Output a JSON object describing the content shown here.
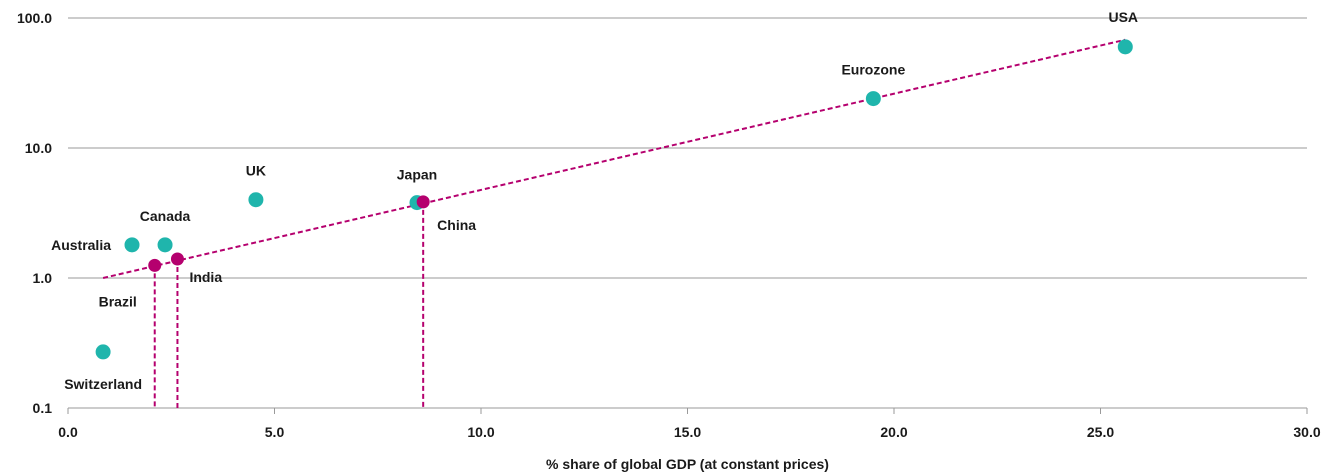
{
  "chart_data": {
    "type": "scatter",
    "xlabel": "% share of global GDP (at constant prices)",
    "ylabel": "",
    "xlim": [
      0,
      30
    ],
    "ylim": [
      0.1,
      100
    ],
    "y_scale": "log",
    "x_ticks": [
      "0.0",
      "5.0",
      "10.0",
      "15.0",
      "20.0",
      "25.0",
      "30.0"
    ],
    "y_ticks": [
      "0.1",
      "1.0",
      "10.0",
      "100.0"
    ],
    "grid": "horizontal",
    "colors": {
      "developed": "#1fb5ac",
      "emerging": "#b5006e",
      "trend": "#b5006e"
    },
    "points": [
      {
        "name": "USA",
        "x": 25.6,
        "y": 60,
        "group": "developed"
      },
      {
        "name": "Eurozone",
        "x": 19.5,
        "y": 24,
        "group": "developed"
      },
      {
        "name": "Japan",
        "x": 8.45,
        "y": 3.8,
        "group": "developed"
      },
      {
        "name": "China",
        "x": 8.6,
        "y": 3.85,
        "group": "emerging"
      },
      {
        "name": "UK",
        "x": 4.55,
        "y": 4.0,
        "group": "developed"
      },
      {
        "name": "Canada",
        "x": 2.35,
        "y": 1.8,
        "group": "developed"
      },
      {
        "name": "Australia",
        "x": 1.55,
        "y": 1.8,
        "group": "developed"
      },
      {
        "name": "India",
        "x": 2.65,
        "y": 1.4,
        "group": "emerging"
      },
      {
        "name": "Brazil",
        "x": 2.1,
        "y": 1.25,
        "group": "emerging"
      },
      {
        "name": "Switzerland",
        "x": 0.85,
        "y": 0.27,
        "group": "developed"
      }
    ],
    "trendline": {
      "x": [
        0.85,
        25.6
      ],
      "y": [
        1.0,
        68
      ]
    },
    "drop_lines": [
      {
        "x": 2.1,
        "y": 1.25
      },
      {
        "x": 2.65,
        "y": 1.4
      },
      {
        "x": 8.6,
        "y": 3.85
      }
    ]
  }
}
